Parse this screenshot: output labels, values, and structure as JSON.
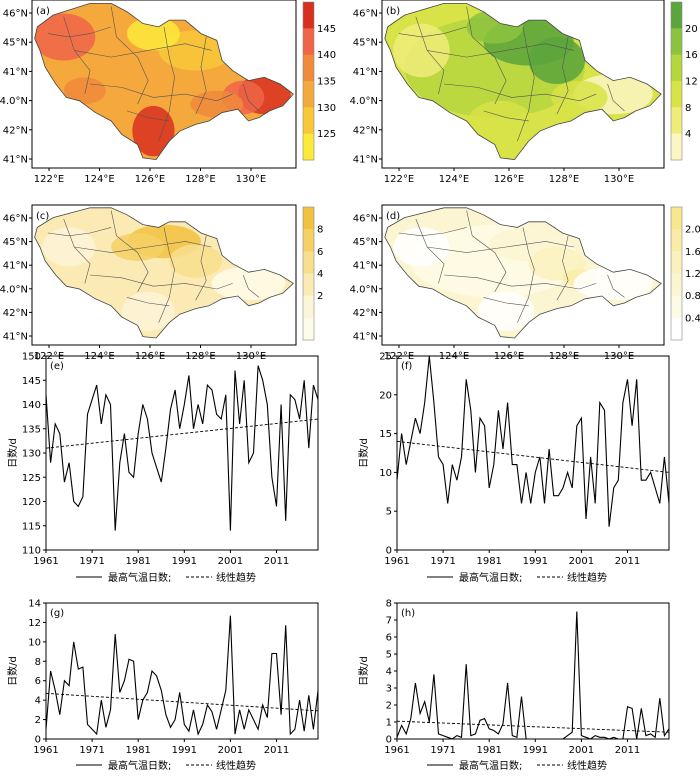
{
  "maps": [
    {
      "label": "(a)",
      "lat_labels": [
        "46°N",
        "45°N",
        "41°N",
        "4.0°N",
        "42°N",
        "41°N"
      ],
      "lon_labels": [
        "122°E",
        "124°E",
        "126°E",
        "128°E",
        "130°E"
      ],
      "colorbar": {
        "ticks": [
          "145",
          "140",
          "135",
          "130",
          "125"
        ],
        "colors": [
          "#d7301f",
          "#ef6548",
          "#f08a3c",
          "#f4a93c",
          "#f8c838",
          "#fde93a"
        ]
      }
    },
    {
      "label": "(b)",
      "lat_labels": [
        "46°N",
        "45°N",
        "41°N",
        "4.0°N",
        "42°N",
        "41°N"
      ],
      "lon_labels": [
        "122°E",
        "124°E",
        "126°E",
        "128°E",
        "130°E"
      ],
      "colorbar": {
        "ticks": [
          "20",
          "16",
          "12",
          "8",
          "4"
        ],
        "colors": [
          "#5aa53c",
          "#8cc33e",
          "#b6d640",
          "#d8e348",
          "#f0ec7a",
          "#fbf6c4"
        ]
      }
    },
    {
      "label": "(c)",
      "lat_labels": [
        "46°N",
        "45°N",
        "41°N",
        "4.0°N",
        "42°N",
        "41°N"
      ],
      "lon_labels": [
        "122°E",
        "124°E",
        "126°E",
        "128°E",
        "130°E"
      ],
      "colorbar": {
        "ticks": [
          "8",
          "6",
          "4",
          "2"
        ],
        "colors": [
          "#f2c23e",
          "#f5d064",
          "#f8df8e",
          "#fbeab4",
          "#fdf5d8",
          "#fffbea"
        ]
      }
    },
    {
      "label": "(d)",
      "lat_labels": [
        "46°N",
        "45°N",
        "41°N",
        "4.0°N",
        "42°N",
        "41°N"
      ],
      "lon_labels": [
        "122°E",
        "124°E",
        "126°E",
        "128°E",
        "130°E"
      ],
      "colorbar": {
        "ticks": [
          "2.0",
          "1.6",
          "1.2",
          "0.8",
          "0.4"
        ],
        "colors": [
          "#f8e78c",
          "#faeca6",
          "#fbf1be",
          "#fcf5d2",
          "#fefae6",
          "#ffffff"
        ]
      }
    }
  ],
  "chart_data": [
    {
      "type": "line",
      "panel": "(e)",
      "ylabel": "日数/d",
      "ylim": [
        110,
        150
      ],
      "yticks": [
        "110",
        "115",
        "120",
        "125",
        "130",
        "135",
        "140",
        "145",
        "150"
      ],
      "xlim": [
        1961,
        2020
      ],
      "xticks": [
        "1961",
        "1971",
        "1981",
        "1991",
        "2001",
        "2011"
      ],
      "legend": [
        "最高气温日数;",
        "线性趋势"
      ],
      "trend": [
        131,
        137
      ],
      "series": [
        {
          "x": [
            1961,
            1962,
            1963,
            1964,
            1965,
            1966,
            1967,
            1968,
            1969,
            1970,
            1971,
            1972,
            1973,
            1974,
            1975,
            1976,
            1977,
            1978,
            1979,
            1980,
            1981,
            1982,
            1983,
            1984,
            1985,
            1986,
            1987,
            1988,
            1989,
            1990,
            1991,
            1992,
            1993,
            1994,
            1995,
            1996,
            1997,
            1998,
            1999,
            2000,
            2001,
            2002,
            2003,
            2004,
            2005,
            2006,
            2007,
            2008,
            2009,
            2010,
            2011,
            2012,
            2013,
            2014,
            2015,
            2016,
            2017,
            2018,
            2019,
            2020
          ],
          "values": [
            142,
            128,
            136,
            134,
            124,
            128,
            120,
            119,
            121,
            138,
            141,
            144,
            136,
            142,
            140,
            114,
            128,
            134,
            126,
            125,
            134,
            140,
            137,
            130,
            127,
            124,
            131,
            139,
            143,
            135,
            140,
            146,
            135,
            140,
            136,
            144,
            143,
            138,
            137,
            142,
            114,
            147,
            136,
            145,
            128,
            130,
            148,
            145,
            140,
            125,
            119,
            140,
            116,
            142,
            141,
            137,
            145,
            131,
            144,
            141
          ]
        }
      ]
    },
    {
      "type": "line",
      "panel": "(f)",
      "ylabel": "日数/d",
      "ylim": [
        0,
        25
      ],
      "yticks": [
        "0",
        "5",
        "10",
        "15",
        "20",
        "25"
      ],
      "xlim": [
        1961,
        2020
      ],
      "xticks": [
        "1961",
        "1971",
        "1981",
        "1991",
        "2001",
        "2011"
      ],
      "legend": [
        "最高气温日数;",
        "线性趋势"
      ],
      "trend": [
        14,
        10
      ],
      "series": [
        {
          "x": [
            1961,
            1962,
            1963,
            1964,
            1965,
            1966,
            1967,
            1968,
            1969,
            1970,
            1971,
            1972,
            1973,
            1974,
            1975,
            1976,
            1977,
            1978,
            1979,
            1980,
            1981,
            1982,
            1983,
            1984,
            1985,
            1986,
            1987,
            1988,
            1989,
            1990,
            1991,
            1992,
            1993,
            1994,
            1995,
            1996,
            1997,
            1998,
            1999,
            2000,
            2001,
            2002,
            2003,
            2004,
            2005,
            2006,
            2007,
            2008,
            2009,
            2010,
            2011,
            2012,
            2013,
            2014,
            2015,
            2016,
            2017,
            2018,
            2019,
            2020
          ],
          "values": [
            9,
            15,
            11,
            14,
            17,
            15,
            19,
            25,
            19,
            12,
            11,
            6,
            11,
            9,
            12,
            22,
            18,
            10,
            17,
            16,
            8,
            11,
            18,
            13,
            19,
            11,
            11,
            6,
            10,
            6,
            10,
            12,
            6,
            13,
            7,
            7,
            8,
            10,
            8,
            16,
            17,
            4,
            12,
            6,
            19,
            18,
            3,
            8,
            9,
            19,
            22,
            16,
            22,
            9,
            9,
            10,
            8,
            6,
            12,
            6
          ]
        }
      ]
    },
    {
      "type": "line",
      "panel": "(g)",
      "ylabel": "日数/d",
      "ylim": [
        0,
        14
      ],
      "yticks": [
        "0",
        "2",
        "4",
        "6",
        "8",
        "10",
        "12",
        "14"
      ],
      "xlim": [
        1961,
        2020
      ],
      "xticks": [
        "1961",
        "1971",
        "1981",
        "1991",
        "2001",
        "2011"
      ],
      "legend": [
        "最高气温日数;",
        "线性趋势"
      ],
      "trend": [
        4.7,
        2.9
      ],
      "series": [
        {
          "x": [
            1961,
            1962,
            1963,
            1964,
            1965,
            1966,
            1967,
            1968,
            1969,
            1970,
            1971,
            1972,
            1973,
            1974,
            1975,
            1976,
            1977,
            1978,
            1979,
            1980,
            1981,
            1982,
            1983,
            1984,
            1985,
            1986,
            1987,
            1988,
            1989,
            1990,
            1991,
            1992,
            1993,
            1994,
            1995,
            1996,
            1997,
            1998,
            1999,
            2000,
            2001,
            2002,
            2003,
            2004,
            2005,
            2006,
            2007,
            2008,
            2009,
            2010,
            2011,
            2012,
            2013,
            2014,
            2015,
            2016,
            2017,
            2018,
            2019,
            2020
          ],
          "values": [
            1,
            7,
            5,
            2.5,
            6,
            5.5,
            10,
            7.2,
            7.4,
            1.5,
            1,
            0.5,
            4,
            1.2,
            3,
            10.8,
            4.8,
            6,
            8.2,
            8,
            2,
            4,
            4.8,
            7,
            6.5,
            5,
            2.5,
            1.2,
            2,
            4.8,
            1.5,
            0.8,
            3,
            0.5,
            1.5,
            3.5,
            2.8,
            1,
            3,
            5,
            12.7,
            0.5,
            3,
            1,
            3,
            2,
            1,
            3.5,
            2.2,
            8.8,
            8.8,
            2.5,
            11.7,
            0.5,
            1,
            4,
            0.8,
            4.5,
            1,
            5
          ]
        }
      ]
    },
    {
      "type": "line",
      "panel": "(h)",
      "ylabel": "日数/d",
      "ylim": [
        0,
        8
      ],
      "yticks": [
        "0",
        "1",
        "2",
        "3",
        "4",
        "5",
        "6",
        "7",
        "8"
      ],
      "xlim": [
        1961,
        2020
      ],
      "xticks": [
        "1961",
        "1971",
        "1981",
        "1991",
        "2001",
        "2011"
      ],
      "legend": [
        "最高气温日数;",
        "线性趋势"
      ],
      "trend": [
        1.05,
        0.4
      ],
      "series": [
        {
          "x": [
            1961,
            1962,
            1963,
            1964,
            1965,
            1966,
            1967,
            1968,
            1969,
            1970,
            1971,
            1972,
            1973,
            1974,
            1975,
            1976,
            1977,
            1978,
            1979,
            1980,
            1981,
            1982,
            1983,
            1984,
            1985,
            1986,
            1987,
            1988,
            1989,
            1990,
            1991,
            1992,
            1993,
            1994,
            1995,
            1996,
            1997,
            1998,
            1999,
            2000,
            2001,
            2002,
            2003,
            2004,
            2005,
            2006,
            2007,
            2008,
            2009,
            2010,
            2011,
            2012,
            2013,
            2014,
            2015,
            2016,
            2017,
            2018,
            2019,
            2020
          ],
          "values": [
            0.1,
            0.8,
            0.3,
            1.2,
            3.3,
            1.5,
            2.2,
            1,
            3.8,
            0.3,
            0.2,
            0.1,
            0,
            0.2,
            0.1,
            4.4,
            0.2,
            0.3,
            1.1,
            1.2,
            0.6,
            0.5,
            0.3,
            0.9,
            3.3,
            0.2,
            0.1,
            2.5,
            0,
            0,
            0,
            0,
            0,
            0,
            0,
            0,
            0,
            0.2,
            0.4,
            7.5,
            0.2,
            0.1,
            0,
            0.2,
            0.1,
            0.1,
            0,
            0.1,
            0,
            0,
            1.9,
            1.8,
            0,
            1.8,
            0.2,
            0.3,
            0.1,
            2.4,
            0.2,
            0.6
          ]
        }
      ]
    }
  ]
}
